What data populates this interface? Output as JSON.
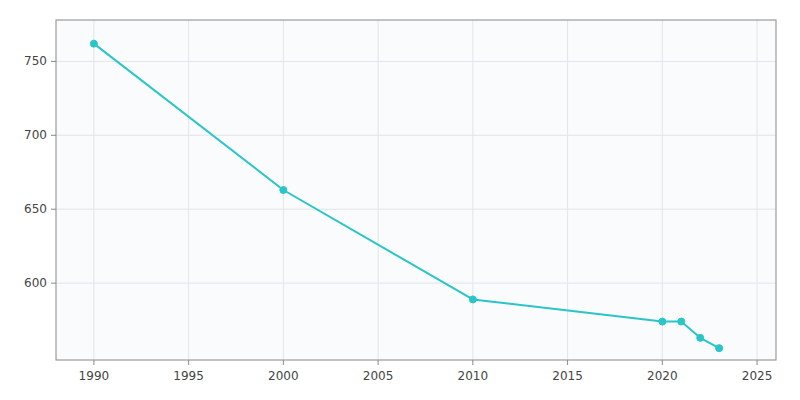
{
  "chart_data": {
    "type": "line",
    "x": [
      1990,
      2000,
      2010,
      2020,
      2021,
      2022,
      2023
    ],
    "values": [
      762,
      663,
      589,
      574,
      574,
      563,
      556
    ],
    "color": "#29c5c8",
    "marker": "circle",
    "xlim": [
      1988,
      2026
    ],
    "ylim": [
      548,
      778
    ],
    "xticks": [
      1990,
      1995,
      2000,
      2005,
      2010,
      2015,
      2020,
      2025
    ],
    "yticks": [
      600,
      650,
      700,
      750
    ],
    "grid": true
  }
}
